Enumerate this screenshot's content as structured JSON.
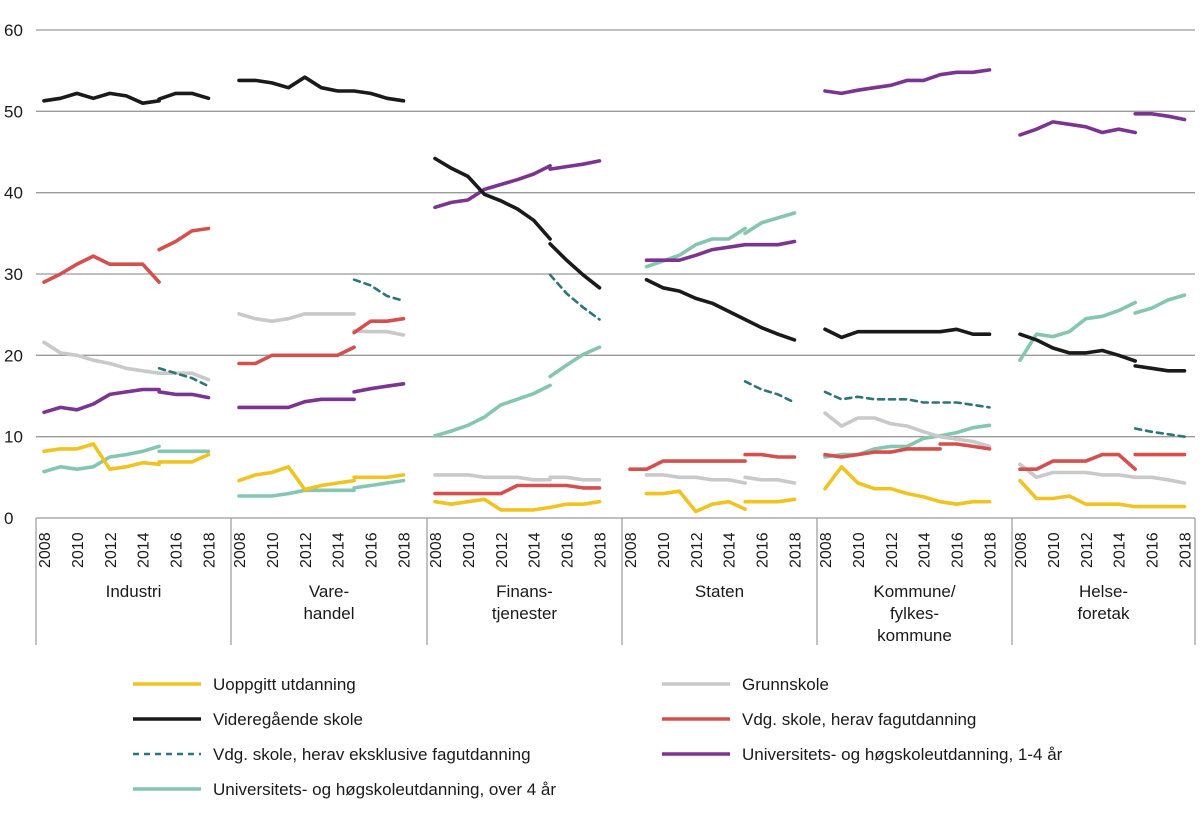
{
  "chart_data": {
    "type": "line",
    "ylim": [
      0,
      60
    ],
    "yticks": [
      0,
      10,
      20,
      30,
      40,
      50,
      60
    ],
    "grid": true,
    "legend_position": "bottom",
    "xtick_labels": [
      "2008",
      "2010",
      "2012",
      "2014",
      "2016",
      "2018"
    ],
    "years": [
      2008,
      2018
    ],
    "series": [
      {
        "key": "uopp",
        "name": "Uoppgitt utdanning",
        "color": "#f0c322",
        "dashed": false
      },
      {
        "key": "grunn",
        "name": "Grunnskole",
        "color": "#c9c9c9",
        "dashed": false
      },
      {
        "key": "vgs",
        "name": "Videregående skole",
        "color": "#1a1a1a",
        "dashed": false
      },
      {
        "key": "fag",
        "name": "Vdg. skole, herav fagutdanning",
        "color": "#d4504f",
        "dashed": false
      },
      {
        "key": "eksfag",
        "name": "Vdg. skole, herav eksklusive fagutdanning",
        "color": "#2f7479",
        "dashed": true
      },
      {
        "key": "uh14",
        "name": "Universitets- og høgskoleutdanning, 1-4 år",
        "color": "#7b3590",
        "dashed": false
      },
      {
        "key": "uh4",
        "name": "Universitets- og høgskoleutdanning, over 4 år",
        "color": "#86c6b0",
        "dashed": false
      }
    ],
    "panels": [
      {
        "label": [
          "Industri"
        ],
        "data": {
          "vgs": [
            {
              "from": 2008,
              "values": [
                51.3,
                51.6,
                52.2,
                51.6,
                52.2,
                51.9,
                51.0,
                51.3
              ]
            },
            {
              "from": 2015,
              "values": [
                51.5,
                52.2,
                52.2,
                51.6
              ]
            }
          ],
          "fag": [
            {
              "from": 2008,
              "values": [
                29.0,
                30.0,
                31.2,
                32.2,
                31.2,
                31.2,
                31.2,
                29.0
              ]
            },
            {
              "from": 2015,
              "values": [
                33.0,
                34.0,
                35.3,
                35.6
              ]
            }
          ],
          "grunn": [
            {
              "from": 2008,
              "values": [
                21.6,
                20.3,
                20.0,
                19.4,
                19.0,
                18.4,
                18.1,
                17.8
              ]
            },
            {
              "from": 2015,
              "values": [
                17.8,
                17.8,
                17.8,
                17.0
              ]
            }
          ],
          "eksfag": [
            {
              "from": 2015,
              "values": [
                18.4,
                17.8,
                17.2,
                16.2
              ]
            }
          ],
          "uh14": [
            {
              "from": 2008,
              "values": [
                13.0,
                13.6,
                13.3,
                14.0,
                15.2,
                15.5,
                15.8,
                15.8
              ]
            },
            {
              "from": 2015,
              "values": [
                15.5,
                15.2,
                15.2,
                14.8
              ]
            }
          ],
          "uopp": [
            {
              "from": 2008,
              "values": [
                8.2,
                8.5,
                8.5,
                9.1,
                6.0,
                6.3,
                6.8,
                6.6
              ]
            },
            {
              "from": 2015,
              "values": [
                6.9,
                6.9,
                6.9,
                7.8
              ]
            }
          ],
          "uh4": [
            {
              "from": 2008,
              "values": [
                5.7,
                6.3,
                6.0,
                6.3,
                7.5,
                7.8,
                8.2,
                8.8
              ]
            },
            {
              "from": 2015,
              "values": [
                8.2,
                8.2,
                8.2,
                8.2
              ]
            }
          ]
        }
      },
      {
        "label": [
          "Vare-",
          "handel"
        ],
        "data": {
          "vgs": [
            {
              "from": 2008,
              "values": [
                53.8,
                53.8,
                53.5,
                52.9,
                54.2,
                52.9,
                52.5,
                52.5,
                52.2,
                51.6,
                51.3
              ]
            }
          ],
          "grunn": [
            {
              "from": 2008,
              "values": [
                25.1,
                24.5,
                24.2,
                24.5,
                25.1,
                25.1,
                25.1,
                25.1
              ]
            },
            {
              "from": 2015,
              "values": [
                23.0,
                22.9,
                22.9,
                22.5
              ]
            }
          ],
          "eksfag": [
            {
              "from": 2015,
              "values": [
                29.3,
                28.6,
                27.3,
                26.7
              ]
            }
          ],
          "fag": [
            {
              "from": 2008,
              "values": [
                19.0,
                19.0,
                20.0,
                20.0,
                20.0,
                20.0,
                20.0,
                21.0
              ]
            },
            {
              "from": 2015,
              "values": [
                22.8,
                24.2,
                24.2,
                24.5
              ]
            }
          ],
          "uh14": [
            {
              "from": 2008,
              "values": [
                13.6,
                13.6,
                13.6,
                13.6,
                14.3,
                14.6,
                14.6,
                14.6
              ]
            },
            {
              "from": 2015,
              "values": [
                15.5,
                15.9,
                16.2,
                16.5
              ]
            }
          ],
          "uopp": [
            {
              "from": 2008,
              "values": [
                4.6,
                5.3,
                5.6,
                6.3,
                3.5,
                4.0,
                4.3,
                4.6
              ]
            },
            {
              "from": 2015,
              "values": [
                5.0,
                5.0,
                5.0,
                5.3
              ]
            }
          ],
          "uh4": [
            {
              "from": 2008,
              "values": [
                2.7,
                2.7,
                2.7,
                3.0,
                3.4,
                3.4,
                3.4,
                3.4
              ]
            },
            {
              "from": 2015,
              "values": [
                3.7,
                4.0,
                4.3,
                4.6
              ]
            }
          ]
        }
      },
      {
        "label": [
          "Finans-",
          "tjenester"
        ],
        "data": {
          "vgs": [
            {
              "from": 2008,
              "values": [
                44.2,
                43.0,
                42.0,
                39.8,
                39.0,
                38.0,
                36.6,
                34.3
              ]
            },
            {
              "from": 2015,
              "values": [
                33.7,
                31.7,
                29.9,
                28.3
              ]
            }
          ],
          "uh14": [
            {
              "from": 2008,
              "values": [
                38.2,
                38.8,
                39.1,
                40.4,
                41.0,
                41.6,
                42.3,
                43.3
              ]
            },
            {
              "from": 2015,
              "values": [
                42.9,
                43.2,
                43.5,
                43.9
              ]
            }
          ],
          "eksfag": [
            {
              "from": 2015,
              "values": [
                29.9,
                27.6,
                25.9,
                24.4
              ]
            }
          ],
          "uh4": [
            {
              "from": 2008,
              "values": [
                10.1,
                10.7,
                11.4,
                12.4,
                13.9,
                14.6,
                15.3,
                16.3
              ]
            },
            {
              "from": 2015,
              "values": [
                17.4,
                18.8,
                20.1,
                21.0
              ]
            }
          ],
          "grunn": [
            {
              "from": 2008,
              "values": [
                5.3,
                5.3,
                5.3,
                5.0,
                5.0,
                5.0,
                4.7,
                4.7
              ]
            },
            {
              "from": 2015,
              "values": [
                5.0,
                5.0,
                4.7,
                4.7
              ]
            }
          ],
          "fag": [
            {
              "from": 2008,
              "values": [
                3.0,
                3.0,
                3.0,
                3.0,
                3.0,
                4.0,
                4.0,
                4.0
              ]
            },
            {
              "from": 2015,
              "values": [
                4.0,
                4.0,
                3.7,
                3.7
              ]
            }
          ],
          "uopp": [
            {
              "from": 2008,
              "values": [
                2.0,
                1.7,
                2.0,
                2.3,
                1.0,
                1.0,
                1.0,
                1.3
              ]
            },
            {
              "from": 2015,
              "values": [
                1.3,
                1.7,
                1.7,
                2.0
              ]
            }
          ]
        }
      },
      {
        "label": [
          "Staten"
        ],
        "data": {
          "vgs": [
            {
              "from": 2009,
              "values": [
                29.3,
                28.3,
                27.9,
                27.0,
                26.4,
                25.4,
                24.4,
                23.4,
                22.6,
                21.9
              ]
            }
          ],
          "uh14": [
            {
              "from": 2009,
              "values": [
                31.7,
                31.7,
                31.7,
                32.3,
                33.0,
                33.3,
                33.6
              ]
            },
            {
              "from": 2015,
              "values": [
                33.6,
                33.6,
                33.6,
                34.0
              ]
            }
          ],
          "uh4": [
            {
              "from": 2009,
              "values": [
                30.9,
                31.6,
                32.3,
                33.6,
                34.3,
                34.3,
                35.6
              ]
            },
            {
              "from": 2015,
              "values": [
                35.0,
                36.3,
                36.9,
                37.5
              ]
            }
          ],
          "eksfag": [
            {
              "from": 2015,
              "values": [
                16.8,
                15.8,
                15.2,
                14.2
              ]
            }
          ],
          "fag": [
            {
              "from": 2008,
              "values": [
                6.0,
                6.0,
                7.0,
                7.0,
                7.0,
                7.0,
                7.0,
                7.0
              ]
            },
            {
              "from": 2015,
              "values": [
                7.8,
                7.8,
                7.5,
                7.5
              ]
            }
          ],
          "grunn": [
            {
              "from": 2009,
              "values": [
                5.3,
                5.3,
                5.0,
                5.0,
                4.7,
                4.7,
                4.3
              ]
            },
            {
              "from": 2015,
              "values": [
                5.0,
                4.7,
                4.7,
                4.3
              ]
            }
          ],
          "uopp": [
            {
              "from": 2009,
              "values": [
                3.0,
                3.0,
                3.3,
                0.8,
                1.7,
                2.0,
                1.1
              ]
            },
            {
              "from": 2015,
              "values": [
                2.0,
                2.0,
                2.0,
                2.3
              ]
            }
          ]
        }
      },
      {
        "label": [
          "Kommune/",
          "fylkes-",
          "kommune"
        ],
        "data": {
          "uh14": [
            {
              "from": 2008,
              "values": [
                52.5,
                52.2,
                52.6,
                52.9,
                53.2,
                53.8,
                53.8,
                54.5,
                54.8,
                54.8,
                55.1
              ]
            }
          ],
          "vgs": [
            {
              "from": 2008,
              "values": [
                23.2,
                22.2,
                22.9,
                22.9,
                22.9,
                22.9,
                22.9,
                22.9,
                23.2,
                22.6,
                22.6
              ]
            }
          ],
          "eksfag": [
            {
              "from": 2008,
              "values": [
                15.5,
                14.6,
                14.9,
                14.6,
                14.6,
                14.6,
                14.2,
                14.2,
                14.2,
                13.9,
                13.6
              ]
            }
          ],
          "grunn": [
            {
              "from": 2008,
              "values": [
                12.9,
                11.3,
                12.3,
                12.3,
                11.6,
                11.3,
                10.6,
                10.0,
                9.7,
                9.4,
                8.8
              ]
            }
          ],
          "uh4": [
            {
              "from": 2008,
              "values": [
                7.5,
                7.8,
                7.8,
                8.5,
                8.8,
                8.8,
                9.8,
                10.1,
                10.5,
                11.1,
                11.4
              ]
            }
          ],
          "fag": [
            {
              "from": 2008,
              "values": [
                7.8,
                7.5,
                7.8,
                8.1,
                8.1,
                8.5,
                8.5,
                8.5
              ]
            },
            {
              "from": 2015,
              "values": [
                9.1,
                9.1,
                8.8,
                8.5
              ]
            }
          ],
          "uopp": [
            {
              "from": 2008,
              "values": [
                3.6,
                6.3,
                4.3,
                3.6,
                3.6,
                3.0,
                2.6,
                2.0,
                1.7,
                2.0,
                2.0
              ]
            }
          ]
        }
      },
      {
        "label": [
          "Helse-",
          "foretak"
        ],
        "data": {
          "uh14": [
            {
              "from": 2008,
              "values": [
                47.1,
                47.8,
                48.7,
                48.4,
                48.1,
                47.4,
                47.8,
                47.4
              ]
            },
            {
              "from": 2015,
              "values": [
                49.7,
                49.7,
                49.4,
                49.0
              ]
            }
          ],
          "uh4": [
            {
              "from": 2008,
              "values": [
                19.4,
                22.6,
                22.3,
                22.9,
                24.5,
                24.8,
                25.5,
                26.5
              ]
            },
            {
              "from": 2015,
              "values": [
                25.2,
                25.8,
                26.8,
                27.4
              ]
            }
          ],
          "vgs": [
            {
              "from": 2008,
              "values": [
                22.6,
                21.9,
                20.9,
                20.3,
                20.3,
                20.6,
                20.0,
                19.3
              ]
            },
            {
              "from": 2015,
              "values": [
                18.7,
                18.4,
                18.1,
                18.1
              ]
            }
          ],
          "eksfag": [
            {
              "from": 2015,
              "values": [
                11.0,
                10.6,
                10.3,
                10.0
              ]
            }
          ],
          "fag": [
            {
              "from": 2008,
              "values": [
                6.0,
                6.0,
                7.0,
                7.0,
                7.0,
                7.8,
                7.8,
                6.0
              ]
            },
            {
              "from": 2015,
              "values": [
                7.8,
                7.8,
                7.8,
                7.8
              ]
            }
          ],
          "grunn": [
            {
              "from": 2008,
              "values": [
                6.6,
                5.0,
                5.6,
                5.6,
                5.6,
                5.3,
                5.3,
                5.0
              ]
            },
            {
              "from": 2015,
              "values": [
                5.0,
                5.0,
                4.7,
                4.3
              ]
            }
          ],
          "uopp": [
            {
              "from": 2008,
              "values": [
                4.6,
                2.4,
                2.4,
                2.7,
                1.7,
                1.7,
                1.7,
                1.4,
                1.4,
                1.4,
                1.4
              ]
            }
          ]
        }
      }
    ]
  }
}
